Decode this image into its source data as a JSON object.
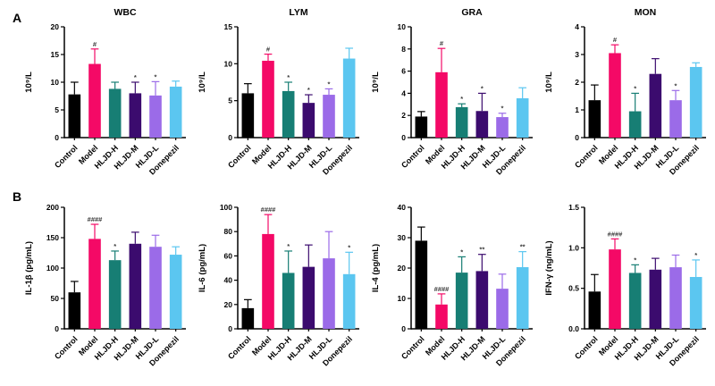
{
  "figure": {
    "panel_a_label": "A",
    "panel_b_label": "B"
  },
  "bar_colors": [
    "#000000",
    "#F40966",
    "#177E74",
    "#3B0B6E",
    "#9B6BE8",
    "#5BC6F0"
  ],
  "sig_color": "#3a3a3a",
  "axis_color": "#000000",
  "chart_data": [
    {
      "id": "wbc",
      "type": "bar",
      "row": "A",
      "title": "WBC",
      "ylabel": "10⁹/L",
      "ylim": [
        0,
        20
      ],
      "yticks": [
        0,
        5,
        10,
        15,
        20
      ],
      "ytick_labels": [
        "0",
        "5",
        "10",
        "15",
        "20"
      ],
      "categories": [
        "Control",
        "Model",
        "HLJD-H",
        "HLJD-M",
        "HLJD-L",
        "Donepezil"
      ],
      "values": [
        7.8,
        13.3,
        8.8,
        8.0,
        7.6,
        9.2
      ],
      "errors": [
        2.2,
        2.7,
        1.2,
        2.0,
        2.5,
        1.0
      ],
      "sig": [
        "",
        "#",
        "",
        "*",
        "*",
        ""
      ]
    },
    {
      "id": "lym",
      "type": "bar",
      "row": "A",
      "title": "LYM",
      "ylabel": "10⁹/L",
      "ylim": [
        0,
        15
      ],
      "yticks": [
        0,
        5,
        10,
        15
      ],
      "ytick_labels": [
        "0",
        "5",
        "10",
        "15"
      ],
      "categories": [
        "Control",
        "Model",
        "HLJD-H",
        "HLJD-M",
        "HLJD-L",
        "Donepezil"
      ],
      "values": [
        6.0,
        10.4,
        6.3,
        4.7,
        5.8,
        10.7
      ],
      "errors": [
        1.3,
        0.9,
        1.2,
        1.1,
        0.8,
        1.4
      ],
      "sig": [
        "",
        "#",
        "*",
        "*",
        "*",
        ""
      ]
    },
    {
      "id": "gra",
      "type": "bar",
      "row": "A",
      "title": "GRA",
      "ylabel": "10⁹/L",
      "ylim": [
        0,
        10
      ],
      "yticks": [
        0,
        2,
        4,
        6,
        8,
        10
      ],
      "ytick_labels": [
        "0",
        "2",
        "4",
        "6",
        "8",
        "10"
      ],
      "categories": [
        "Control",
        "Model",
        "HLJD-H",
        "HLJD-M",
        "HLJD-L",
        "Donepezil"
      ],
      "values": [
        1.9,
        5.9,
        2.75,
        2.4,
        1.85,
        3.55
      ],
      "errors": [
        0.45,
        2.15,
        0.3,
        1.6,
        0.35,
        0.95
      ],
      "sig": [
        "",
        "#",
        "*",
        "*",
        "*",
        ""
      ]
    },
    {
      "id": "mon",
      "type": "bar",
      "row": "A",
      "title": "MON",
      "ylabel": "10⁹/L",
      "ylim": [
        0,
        4
      ],
      "yticks": [
        0,
        1,
        2,
        3,
        4
      ],
      "ytick_labels": [
        "0",
        "1",
        "2",
        "3",
        "4"
      ],
      "categories": [
        "Control",
        "Model",
        "HLJD-H",
        "HLJD-M",
        "HLJD-L",
        "Donepezil"
      ],
      "values": [
        1.35,
        3.05,
        0.95,
        2.3,
        1.35,
        2.55
      ],
      "errors": [
        0.55,
        0.3,
        0.65,
        0.55,
        0.35,
        0.15
      ],
      "sig": [
        "",
        "#",
        "*",
        "",
        "*",
        ""
      ]
    },
    {
      "id": "il1b",
      "type": "bar",
      "row": "B",
      "title": "",
      "ylabel": "IL-1β (pg/mL)",
      "ylim": [
        0,
        200
      ],
      "yticks": [
        0,
        50,
        100,
        150,
        200
      ],
      "ytick_labels": [
        "0",
        "50",
        "100",
        "150",
        "200"
      ],
      "categories": [
        "Control",
        "Model",
        "HLJD-H",
        "HLJD-M",
        "HLJD-L",
        "Donepezil"
      ],
      "values": [
        60,
        148,
        113,
        140,
        135,
        122
      ],
      "errors": [
        18,
        24,
        15,
        19,
        19,
        13
      ],
      "sig": [
        "",
        "####",
        "*",
        "",
        "",
        ""
      ]
    },
    {
      "id": "il6",
      "type": "bar",
      "row": "B",
      "title": "",
      "ylabel": "IL-6 (pg/mL)",
      "ylim": [
        0,
        100
      ],
      "yticks": [
        0,
        20,
        40,
        60,
        80,
        100
      ],
      "ytick_labels": [
        "0",
        "20",
        "40",
        "60",
        "80",
        "100"
      ],
      "categories": [
        "Control",
        "Model",
        "HLJD-H",
        "HLJD-M",
        "HLJD-L",
        "Donepezil"
      ],
      "values": [
        17,
        78,
        46,
        51,
        58,
        45
      ],
      "errors": [
        7,
        16,
        18,
        18,
        22,
        18
      ],
      "sig": [
        "",
        "####",
        "*",
        "",
        "",
        "*"
      ]
    },
    {
      "id": "il4",
      "type": "bar",
      "row": "B",
      "title": "",
      "ylabel": "IL-4 (pg/mL)",
      "ylim": [
        0,
        40
      ],
      "yticks": [
        0,
        10,
        20,
        30,
        40
      ],
      "ytick_labels": [
        "0",
        "10",
        "20",
        "30",
        "40"
      ],
      "categories": [
        "Control",
        "Model",
        "HLJD-H",
        "HLJD-M",
        "HLJD-L",
        "Donepezil"
      ],
      "values": [
        29,
        8,
        18.5,
        19,
        13.2,
        20.3
      ],
      "errors": [
        4.5,
        3.5,
        5.2,
        5.5,
        4.8,
        5.1
      ],
      "sig": [
        "",
        "####",
        "*",
        "**",
        "",
        "**"
      ]
    },
    {
      "id": "ifng",
      "type": "bar",
      "row": "B",
      "title": "",
      "ylabel": "IFN-γ (ng/mL)",
      "ylim": [
        0,
        1.5
      ],
      "yticks": [
        0,
        0.5,
        1.0,
        1.5
      ],
      "ytick_labels": [
        "0.0",
        "0.5",
        "1.0",
        "1.5"
      ],
      "categories": [
        "Control",
        "Model",
        "HLJD-H",
        "HLJD-M",
        "HLJD-L",
        "Donepezil"
      ],
      "values": [
        0.46,
        0.98,
        0.69,
        0.73,
        0.76,
        0.64
      ],
      "errors": [
        0.21,
        0.13,
        0.1,
        0.14,
        0.15,
        0.21
      ],
      "sig": [
        "",
        "####",
        "*",
        "",
        "",
        "*"
      ]
    }
  ]
}
